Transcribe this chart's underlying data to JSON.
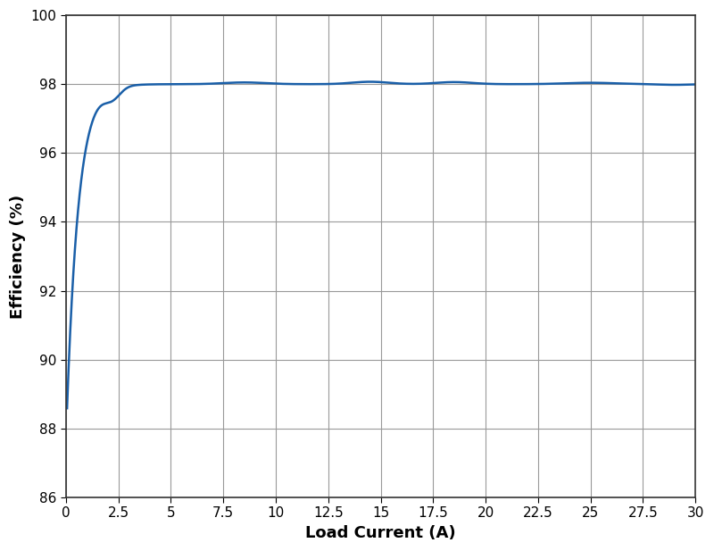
{
  "title": "",
  "xlabel": "Load Current (A)",
  "ylabel": "Efficiency (%)",
  "line_color": "#1a5fa8",
  "line_width": 1.8,
  "xlim": [
    0,
    30
  ],
  "ylim": [
    86,
    100
  ],
  "xticks": [
    0,
    2.5,
    5,
    7.5,
    10,
    12.5,
    15,
    17.5,
    20,
    22.5,
    25,
    27.5,
    30
  ],
  "yticks": [
    86,
    88,
    90,
    92,
    94,
    96,
    98,
    100
  ],
  "grid_color": "#999999",
  "background_color": "#ffffff",
  "xlabel_fontsize": 13,
  "ylabel_fontsize": 13,
  "tick_fontsize": 11,
  "spine_color": "#333333"
}
